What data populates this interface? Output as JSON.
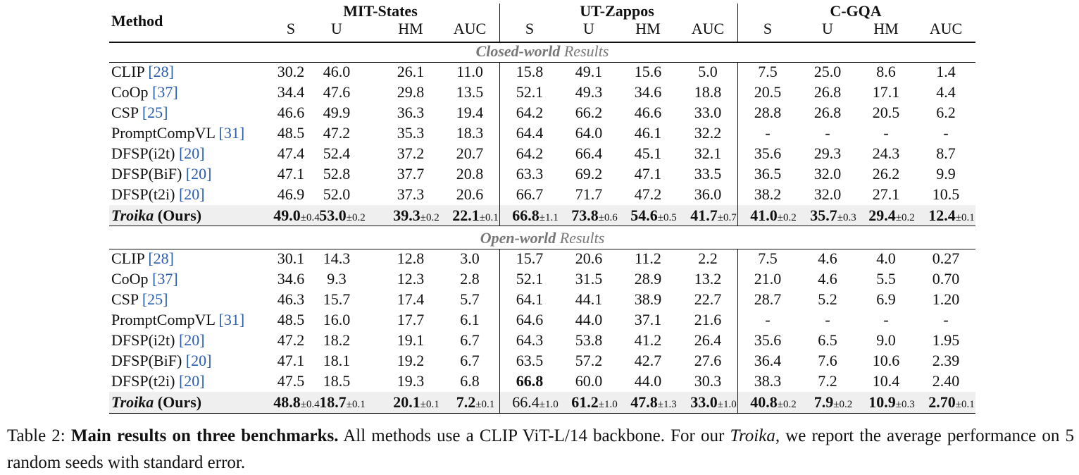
{
  "table": {
    "header": {
      "method": "Method",
      "groups": [
        "MIT-States",
        "UT-Zappos",
        "C-GQA"
      ],
      "metrics": [
        "S",
        "U",
        "HM",
        "AUC"
      ]
    },
    "sections": [
      {
        "title": "Closed-world",
        "title_rest": "Results",
        "rows": [
          {
            "method": "CLIP",
            "ref": "[28]",
            "cells": [
              "30.2",
              "46.0",
              "26.1",
              "11.0",
              "15.8",
              "49.1",
              "15.6",
              "5.0",
              "7.5",
              "25.0",
              "8.6",
              "1.4"
            ]
          },
          {
            "method": "CoOp",
            "ref": "[37]",
            "cells": [
              "34.4",
              "47.6",
              "29.8",
              "13.5",
              "52.1",
              "49.3",
              "34.6",
              "18.8",
              "20.5",
              "26.8",
              "17.1",
              "4.4"
            ]
          },
          {
            "method": "CSP",
            "ref": "[25]",
            "cells": [
              "46.6",
              "49.9",
              "36.3",
              "19.4",
              "64.2",
              "66.2",
              "46.6",
              "33.0",
              "28.8",
              "26.8",
              "20.5",
              "6.2"
            ]
          },
          {
            "method": "PromptCompVL",
            "ref": "[31]",
            "cells": [
              "48.5",
              "47.2",
              "35.3",
              "18.3",
              "64.4",
              "64.0",
              "46.1",
              "32.2",
              "-",
              "-",
              "-",
              "-"
            ]
          },
          {
            "method": "DFSP(i2t)",
            "ref": "[20]",
            "cells": [
              "47.4",
              "52.4",
              "37.2",
              "20.7",
              "64.2",
              "66.4",
              "45.1",
              "32.1",
              "35.6",
              "29.3",
              "24.3",
              "8.7"
            ]
          },
          {
            "method": "DFSP(BiF)",
            "ref": "[20]",
            "cells": [
              "47.1",
              "52.8",
              "37.7",
              "20.8",
              "63.3",
              "69.2",
              "47.1",
              "33.5",
              "36.5",
              "32.0",
              "26.2",
              "9.9"
            ]
          },
          {
            "method": "DFSP(t2i)",
            "ref": "[20]",
            "cells": [
              "46.9",
              "52.0",
              "37.3",
              "20.6",
              "66.7",
              "71.7",
              "47.2",
              "36.0",
              "38.2",
              "32.0",
              "27.1",
              "10.5"
            ]
          },
          {
            "method": "Troika",
            "suffix": "(Ours)",
            "highlight": true,
            "cells": [
              {
                "value": "49.0",
                "error": "±0.4",
                "bold": true
              },
              {
                "value": "53.0",
                "error": "±0.2",
                "bold": true
              },
              {
                "value": "39.3",
                "error": "±0.2",
                "bold": true
              },
              {
                "value": "22.1",
                "error": "±0.1",
                "bold": true
              },
              {
                "value": "66.8",
                "error": "±1.1",
                "bold": true
              },
              {
                "value": "73.8",
                "error": "±0.6",
                "bold": true
              },
              {
                "value": "54.6",
                "error": "±0.5",
                "bold": true
              },
              {
                "value": "41.7",
                "error": "±0.7",
                "bold": true
              },
              {
                "value": "41.0",
                "error": "±0.2",
                "bold": true
              },
              {
                "value": "35.7",
                "error": "±0.3",
                "bold": true
              },
              {
                "value": "29.4",
                "error": "±0.2",
                "bold": true
              },
              {
                "value": "12.4",
                "error": "±0.1",
                "bold": true
              }
            ]
          }
        ]
      },
      {
        "title": "Open-world",
        "title_rest": "Results",
        "rows": [
          {
            "method": "CLIP",
            "ref": "[28]",
            "cells": [
              "30.1",
              "14.3",
              "12.8",
              "3.0",
              "15.7",
              "20.6",
              "11.2",
              "2.2",
              "7.5",
              "4.6",
              "4.0",
              "0.27"
            ]
          },
          {
            "method": "CoOp",
            "ref": "[37]",
            "cells": [
              "34.6",
              "9.3",
              "12.3",
              "2.8",
              "52.1",
              "31.5",
              "28.9",
              "13.2",
              "21.0",
              "4.6",
              "5.5",
              "0.70"
            ]
          },
          {
            "method": "CSP",
            "ref": "[25]",
            "cells": [
              "46.3",
              "15.7",
              "17.4",
              "5.7",
              "64.1",
              "44.1",
              "38.9",
              "22.7",
              "28.7",
              "5.2",
              "6.9",
              "1.20"
            ]
          },
          {
            "method": "PromptCompVL",
            "ref": "[31]",
            "cells": [
              "48.5",
              "16.0",
              "17.7",
              "6.1",
              "64.6",
              "44.0",
              "37.1",
              "21.6",
              "-",
              "-",
              "-",
              "-"
            ]
          },
          {
            "method": "DFSP(i2t)",
            "ref": "[20]",
            "cells": [
              "47.2",
              "18.2",
              "19.1",
              "6.7",
              "64.3",
              "53.8",
              "41.2",
              "26.4",
              "35.6",
              "6.5",
              "9.0",
              "1.95"
            ]
          },
          {
            "method": "DFSP(BiF)",
            "ref": "[20]",
            "cells": [
              "47.1",
              "18.1",
              "19.2",
              "6.7",
              "63.5",
              "57.2",
              "42.7",
              "27.6",
              "36.4",
              "7.6",
              "10.6",
              "2.39"
            ]
          },
          {
            "method": "DFSP(t2i)",
            "ref": "[20]",
            "cells": [
              "47.5",
              "18.5",
              "19.3",
              "6.8",
              {
                "value": "66.8",
                "bold": true
              },
              "60.0",
              "44.0",
              "30.3",
              "38.3",
              "7.2",
              "10.4",
              "2.40"
            ]
          },
          {
            "method": "Troika",
            "suffix": "(Ours)",
            "highlight": true,
            "cells": [
              {
                "value": "48.8",
                "error": "±0.4",
                "bold": true
              },
              {
                "value": "18.7",
                "error": "±0.1",
                "bold": true
              },
              {
                "value": "20.1",
                "error": "±0.1",
                "bold": true
              },
              {
                "value": "7.2",
                "error": "±0.1",
                "bold": true
              },
              {
                "value": "66.4",
                "error": "±1.0",
                "bold": false
              },
              {
                "value": "61.2",
                "error": "±1.0",
                "bold": true
              },
              {
                "value": "47.8",
                "error": "±1.3",
                "bold": true
              },
              {
                "value": "33.0",
                "error": "±1.0",
                "bold": true
              },
              {
                "value": "40.8",
                "error": "±0.2",
                "bold": true
              },
              {
                "value": "7.9",
                "error": "±0.2",
                "bold": true
              },
              {
                "value": "10.9",
                "error": "±0.3",
                "bold": true
              },
              {
                "value": "2.70",
                "error": "±0.1",
                "bold": true
              }
            ]
          }
        ]
      }
    ]
  },
  "caption": {
    "label": "Table 2:",
    "heading": "Main results on three benchmarks.",
    "text_1": "All methods use a CLIP ViT-L/14 backbone. For our",
    "name": "Troika",
    "text_2": ", we report the average performance on 5 random seeds with standard error."
  }
}
